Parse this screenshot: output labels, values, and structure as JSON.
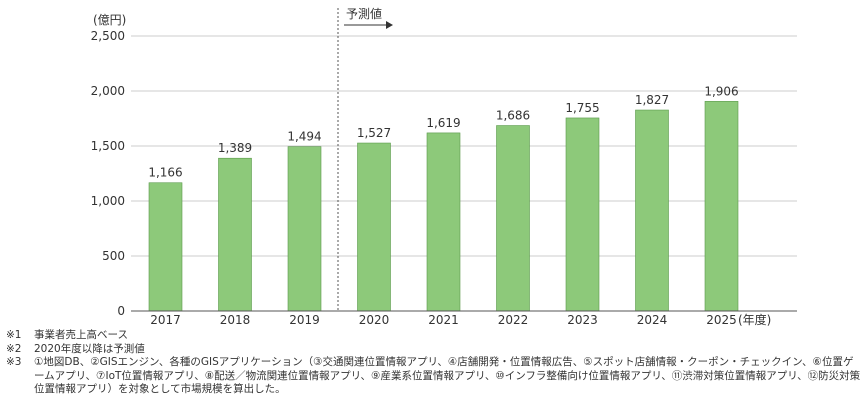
{
  "chart_data": {
    "type": "bar",
    "ylabel": "(億円)",
    "xlabel": "(年度)",
    "categories": [
      "2017",
      "2018",
      "2019",
      "2020",
      "2021",
      "2022",
      "2023",
      "2024",
      "2025"
    ],
    "values": [
      1166,
      1389,
      1494,
      1527,
      1619,
      1686,
      1755,
      1827,
      1906
    ],
    "value_labels": [
      "1,166",
      "1,389",
      "1,494",
      "1,527",
      "1,619",
      "1,686",
      "1,755",
      "1,827",
      "1,906"
    ],
    "ylim": [
      0,
      2500
    ],
    "yticks": [
      0,
      500,
      1000,
      1500,
      2000,
      2500
    ],
    "ytick_labels": [
      "0",
      "500",
      "1,000",
      "1,500",
      "2,000",
      "2,500"
    ],
    "grid": true,
    "bar_color": "#8dc97a",
    "bar_edge_color": "#5a9a4a",
    "forecast_label": "予測値",
    "forecast_start_category": "2020"
  },
  "notes": [
    {
      "mark": "※1",
      "text": "事業者売上高ベース"
    },
    {
      "mark": "※2",
      "text": "2020年度以降は予測値"
    },
    {
      "mark": "※3",
      "text": "①地図DB、②GISエンジン、各種のGISアプリケーション（③交通関連位置情報アプリ、④店舗開発・位置情報広告、⑤スポット店舗情報・クーポン・チェックイン、⑥位置ゲームアプリ、⑦IoT位置情報アプリ、⑧配送／物流関連位置情報アプリ、⑨産業系位置情報アプリ、⑩インフラ整備向け位置情報アプリ、⑪渋滞対策位置情報アプリ、⑫防災対策位置情報アプリ）を対象として市場規模を算出した。"
    }
  ]
}
